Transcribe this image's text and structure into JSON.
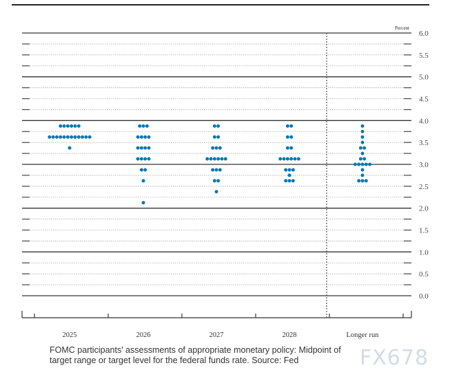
{
  "chart_data": {
    "type": "scatter",
    "unit_label": "Percent",
    "ylim": [
      0,
      6
    ],
    "yticks": [
      "0.0",
      "0.5",
      "1.0",
      "1.5",
      "2.0",
      "2.5",
      "3.0",
      "3.5",
      "4.0",
      "4.5",
      "5.0",
      "5.5",
      "6.0"
    ],
    "categories": [
      "2025",
      "2026",
      "2027",
      "2028",
      "Longer run"
    ],
    "dots": [
      {
        "category": "2025",
        "counts": [
          [
            3.875,
            6
          ],
          [
            3.625,
            12
          ],
          [
            3.375,
            1
          ]
        ]
      },
      {
        "category": "2026",
        "counts": [
          [
            3.875,
            3
          ],
          [
            3.625,
            4
          ],
          [
            3.375,
            4
          ],
          [
            3.125,
            4
          ],
          [
            2.875,
            2
          ],
          [
            2.625,
            1
          ],
          [
            2.125,
            1
          ]
        ]
      },
      {
        "category": "2027",
        "counts": [
          [
            3.875,
            2
          ],
          [
            3.625,
            2
          ],
          [
            3.375,
            3
          ],
          [
            3.125,
            6
          ],
          [
            2.875,
            3
          ],
          [
            2.625,
            2
          ],
          [
            2.375,
            1
          ]
        ]
      },
      {
        "category": "2028",
        "counts": [
          [
            3.875,
            2
          ],
          [
            3.625,
            2
          ],
          [
            3.375,
            2
          ],
          [
            3.125,
            6
          ],
          [
            2.875,
            3
          ],
          [
            2.75,
            1
          ],
          [
            2.625,
            3
          ]
        ]
      },
      {
        "category": "Longer run",
        "counts": [
          [
            3.875,
            1
          ],
          [
            3.75,
            1
          ],
          [
            3.625,
            1
          ],
          [
            3.5,
            1
          ],
          [
            3.375,
            2
          ],
          [
            3.25,
            1
          ],
          [
            3.125,
            2
          ],
          [
            3.0,
            5
          ],
          [
            2.875,
            1
          ],
          [
            2.75,
            1
          ],
          [
            2.625,
            3
          ]
        ]
      }
    ],
    "dot_color": "#0a78b0",
    "grid": true
  },
  "caption": "FOMC participants' assessments of appropriate monetary policy: Midpoint of target range or target level for the federal funds rate. Source: Fed",
  "watermark": "FX678"
}
